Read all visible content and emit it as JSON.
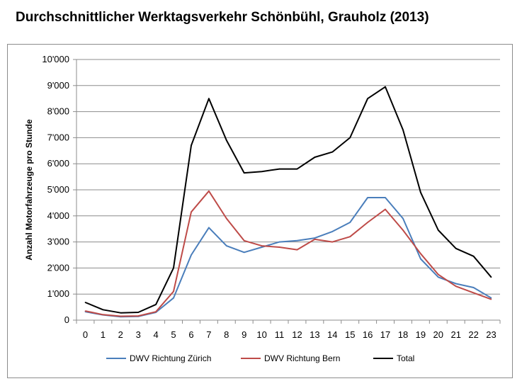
{
  "chart_data": {
    "type": "line",
    "title": "Durchschnittlicher Werktagsverkehr Schönbühl, Grauholz (2013)",
    "ylabel": "Anzahl Motorfahrzeuge pro Stunde",
    "xlabel": "",
    "x": [
      0,
      1,
      2,
      3,
      4,
      5,
      6,
      7,
      8,
      9,
      10,
      11,
      12,
      13,
      14,
      15,
      16,
      17,
      18,
      19,
      20,
      21,
      22,
      23
    ],
    "ylim": [
      0,
      10000
    ],
    "yticks": [
      0,
      1000,
      2000,
      3000,
      4000,
      5000,
      6000,
      7000,
      8000,
      9000,
      10000
    ],
    "ytick_labels": [
      "0",
      "1'000",
      "2'000",
      "3'000",
      "4'000",
      "5'000",
      "6'000",
      "7'000",
      "8'000",
      "9'000",
      "10'000"
    ],
    "grid": true,
    "legend_position": "bottom",
    "series": [
      {
        "name": "DWV Richtung  Zürich",
        "color": "#4a7ebb",
        "values": [
          320,
          200,
          130,
          140,
          300,
          850,
          2500,
          3550,
          2850,
          2600,
          2800,
          3000,
          3050,
          3150,
          3400,
          3750,
          4700,
          4700,
          3900,
          2350,
          1650,
          1400,
          1250,
          850
        ]
      },
      {
        "name": "DWV Richtung  Bern",
        "color": "#be4b48",
        "values": [
          350,
          210,
          150,
          160,
          320,
          1100,
          4150,
          4950,
          3900,
          3050,
          2850,
          2800,
          2700,
          3100,
          3000,
          3200,
          3750,
          4250,
          3450,
          2550,
          1750,
          1300,
          1050,
          800
        ]
      },
      {
        "name": "Total",
        "color": "#000000",
        "values": [
          680,
          400,
          280,
          300,
          600,
          2000,
          6700,
          8500,
          6900,
          5650,
          5700,
          5800,
          5800,
          6250,
          6450,
          7000,
          8500,
          8950,
          7300,
          4900,
          3450,
          2750,
          2450,
          1650
        ]
      }
    ]
  }
}
